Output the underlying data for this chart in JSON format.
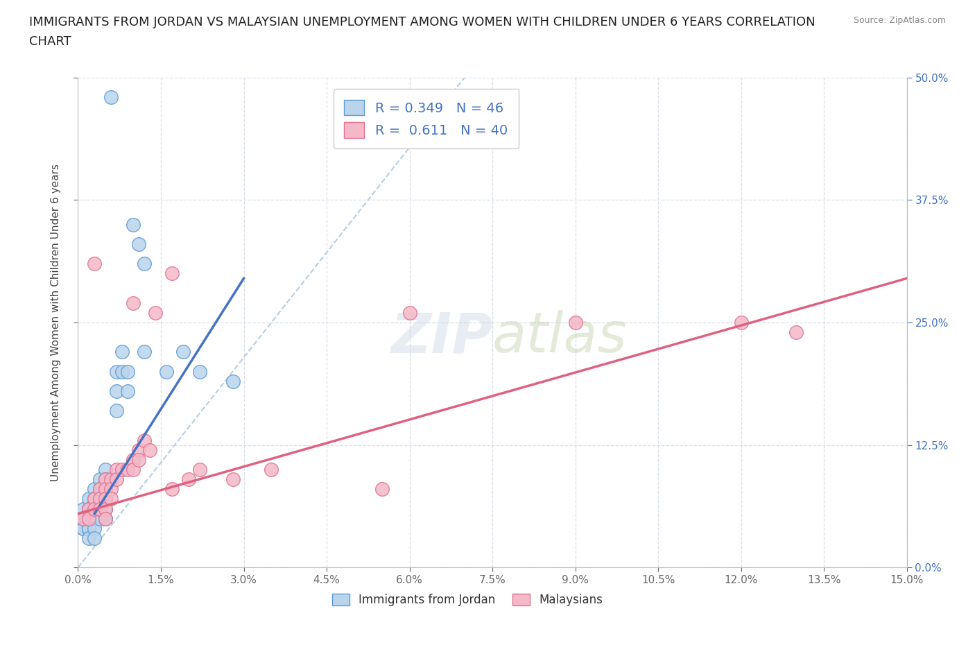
{
  "title": "IMMIGRANTS FROM JORDAN VS MALAYSIAN UNEMPLOYMENT AMONG WOMEN WITH CHILDREN UNDER 6 YEARS CORRELATION\nCHART",
  "source": "Source: ZipAtlas.com",
  "xlabel_ticks": [
    "0.0%",
    "1.5%",
    "3.0%",
    "4.5%",
    "6.0%",
    "7.5%",
    "9.0%",
    "10.5%",
    "12.0%",
    "13.5%",
    "15.0%"
  ],
  "ylabel_label": "Unemployment Among Women with Children Under 6 years",
  "ylabel_ticks_right": [
    "0.0%",
    "12.5%",
    "25.0%",
    "37.5%",
    "50.0%"
  ],
  "xlim": [
    0.0,
    0.15
  ],
  "ylim": [
    0.0,
    0.5
  ],
  "jordan_fill_color": "#bad4ec",
  "jordan_edge_color": "#5b9bd5",
  "malaysian_fill_color": "#f4b8c8",
  "malaysian_edge_color": "#e07090",
  "jordan_line_color": "#4472c4",
  "malaysian_line_color": "#e06080",
  "diagonal_color": "#aec8e0",
  "legend_R_jordan": "0.349",
  "legend_N_jordan": "46",
  "legend_R_malaysian": "0.611",
  "legend_N_malaysian": "40",
  "jordan_scatter_x": [
    0.006,
    0.01,
    0.011,
    0.012,
    0.001,
    0.001,
    0.001,
    0.001,
    0.001,
    0.002,
    0.002,
    0.002,
    0.002,
    0.002,
    0.002,
    0.002,
    0.002,
    0.003,
    0.003,
    0.003,
    0.003,
    0.003,
    0.003,
    0.004,
    0.004,
    0.004,
    0.004,
    0.004,
    0.005,
    0.005,
    0.005,
    0.005,
    0.005,
    0.005,
    0.007,
    0.007,
    0.007,
    0.008,
    0.008,
    0.009,
    0.009,
    0.012,
    0.016,
    0.019,
    0.022,
    0.028
  ],
  "jordan_scatter_y": [
    0.48,
    0.35,
    0.33,
    0.31,
    0.06,
    0.05,
    0.05,
    0.04,
    0.04,
    0.07,
    0.06,
    0.05,
    0.05,
    0.04,
    0.04,
    0.04,
    0.03,
    0.08,
    0.07,
    0.06,
    0.05,
    0.04,
    0.03,
    0.09,
    0.08,
    0.07,
    0.06,
    0.05,
    0.1,
    0.09,
    0.08,
    0.07,
    0.06,
    0.05,
    0.2,
    0.18,
    0.16,
    0.22,
    0.2,
    0.2,
    0.18,
    0.22,
    0.2,
    0.22,
    0.2,
    0.19
  ],
  "malaysian_scatter_x": [
    0.003,
    0.01,
    0.014,
    0.017,
    0.001,
    0.002,
    0.002,
    0.003,
    0.003,
    0.004,
    0.004,
    0.004,
    0.005,
    0.005,
    0.005,
    0.005,
    0.005,
    0.006,
    0.006,
    0.006,
    0.007,
    0.007,
    0.008,
    0.009,
    0.01,
    0.01,
    0.011,
    0.011,
    0.012,
    0.013,
    0.06,
    0.09,
    0.12,
    0.13,
    0.017,
    0.02,
    0.022,
    0.028,
    0.035,
    0.055
  ],
  "malaysian_scatter_y": [
    0.31,
    0.27,
    0.26,
    0.3,
    0.05,
    0.06,
    0.05,
    0.07,
    0.06,
    0.08,
    0.07,
    0.06,
    0.09,
    0.08,
    0.07,
    0.06,
    0.05,
    0.09,
    0.08,
    0.07,
    0.1,
    0.09,
    0.1,
    0.1,
    0.11,
    0.1,
    0.12,
    0.11,
    0.13,
    0.12,
    0.26,
    0.25,
    0.25,
    0.24,
    0.08,
    0.09,
    0.1,
    0.09,
    0.1,
    0.08
  ],
  "jordan_line_x": [
    0.003,
    0.03
  ],
  "jordan_line_y": [
    0.055,
    0.295
  ],
  "malaysian_line_x": [
    0.0,
    0.15
  ],
  "malaysian_line_y": [
    0.055,
    0.295
  ],
  "background_color": "#ffffff",
  "grid_color": "#d8dfe8"
}
